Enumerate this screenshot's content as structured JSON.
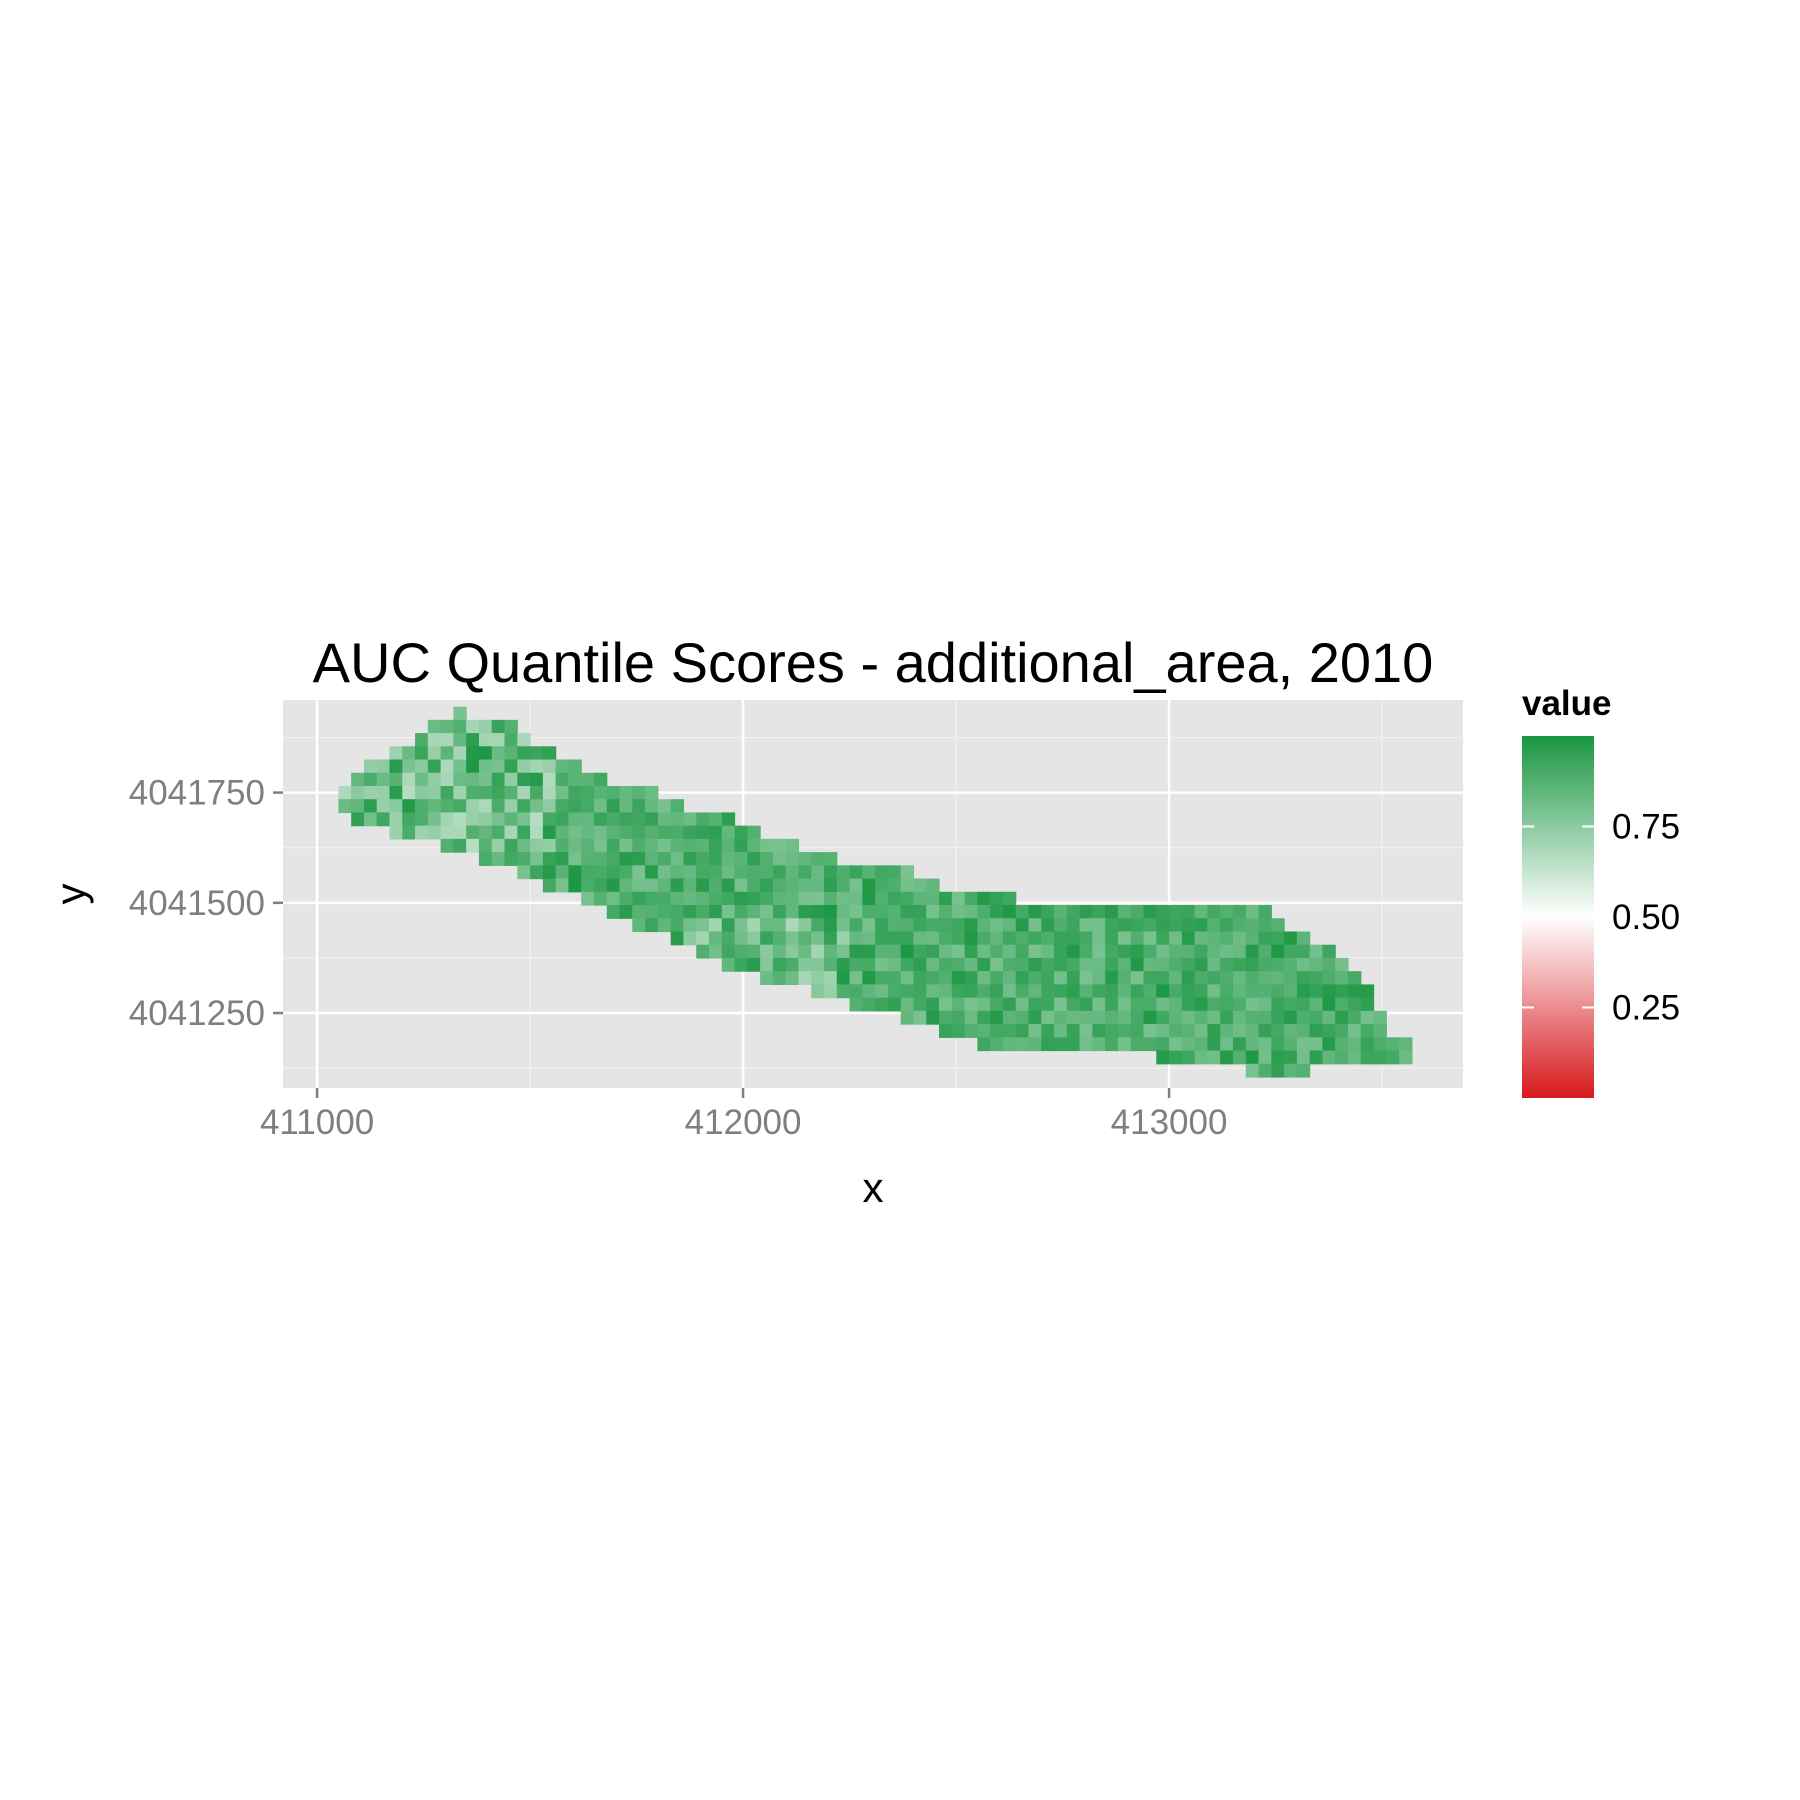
{
  "chart_data": {
    "type": "heatmap",
    "title": "AUC Quantile Scores - additional_area, 2010",
    "xlabel": "x",
    "ylabel": "y",
    "xlim": [
      410920,
      413690
    ],
    "ylim": [
      4041080,
      4041960
    ],
    "x_ticks": [
      {
        "value": 411000,
        "label": "411000"
      },
      {
        "value": 412000,
        "label": "412000"
      },
      {
        "value": 413000,
        "label": "413000"
      }
    ],
    "x_minor": [
      411500,
      412500,
      413500
    ],
    "y_ticks": [
      {
        "value": 4041250,
        "label": "4041250"
      },
      {
        "value": 4041500,
        "label": "4041500"
      },
      {
        "value": 4041750,
        "label": "4041750"
      }
    ],
    "y_minor": [
      4041125,
      4041375,
      4041625,
      4041875
    ],
    "grid": true,
    "cell_size": 30,
    "legend": {
      "title": "value",
      "position": "right",
      "range": [
        0,
        1
      ],
      "labels": [
        {
          "value": 0.25,
          "label": "0.25"
        },
        {
          "value": 0.5,
          "label": "0.50"
        },
        {
          "value": 0.75,
          "label": "0.75"
        }
      ],
      "colors": {
        "low": "#d7191c",
        "mid": "#ffffff",
        "high": "#1a9641"
      }
    },
    "region": {
      "description_of_rows": "each row: y center, x start, x end (data units); values are AUC scores, mostly 0.65-0.98",
      "rows": [
        {
          "y": 4041930,
          "x0": 411320,
          "x1": 411350
        },
        {
          "y": 4041900,
          "x0": 411260,
          "x1": 411470
        },
        {
          "y": 4041870,
          "x0": 411230,
          "x1": 411500
        },
        {
          "y": 4041840,
          "x0": 411170,
          "x1": 411560
        },
        {
          "y": 4041810,
          "x0": 411110,
          "x1": 411620
        },
        {
          "y": 4041780,
          "x0": 411080,
          "x1": 411680
        },
        {
          "y": 4041750,
          "x0": 411050,
          "x1": 411800
        },
        {
          "y": 4041720,
          "x0": 411050,
          "x1": 411860
        },
        {
          "y": 4041690,
          "x0": 411080,
          "x1": 411980
        },
        {
          "y": 4041660,
          "x0": 411170,
          "x1": 412040
        },
        {
          "y": 4041630,
          "x0": 411290,
          "x1": 412130
        },
        {
          "y": 4041600,
          "x0": 411380,
          "x1": 412220
        },
        {
          "y": 4041570,
          "x0": 411470,
          "x1": 412400
        },
        {
          "y": 4041540,
          "x0": 411530,
          "x1": 412460
        },
        {
          "y": 4041510,
          "x0": 411620,
          "x1": 412640
        },
        {
          "y": 4041480,
          "x0": 411680,
          "x1": 413240
        },
        {
          "y": 4041450,
          "x0": 411740,
          "x1": 413270
        },
        {
          "y": 4041420,
          "x0": 411830,
          "x1": 413330
        },
        {
          "y": 4041390,
          "x0": 411890,
          "x1": 413390
        },
        {
          "y": 4041360,
          "x0": 411950,
          "x1": 413420
        },
        {
          "y": 4041330,
          "x0": 412040,
          "x1": 413450
        },
        {
          "y": 4041300,
          "x0": 412160,
          "x1": 413480
        },
        {
          "y": 4041270,
          "x0": 412250,
          "x1": 413480
        },
        {
          "y": 4041240,
          "x0": 412370,
          "x1": 413510
        },
        {
          "y": 4041210,
          "x0": 412460,
          "x1": 413510
        },
        {
          "y": 4041180,
          "x0": 412550,
          "x1": 413570
        },
        {
          "y": 4041150,
          "x0": 412970,
          "x1": 413570
        },
        {
          "y": 4041120,
          "x0": 413180,
          "x1": 413330
        }
      ]
    }
  }
}
